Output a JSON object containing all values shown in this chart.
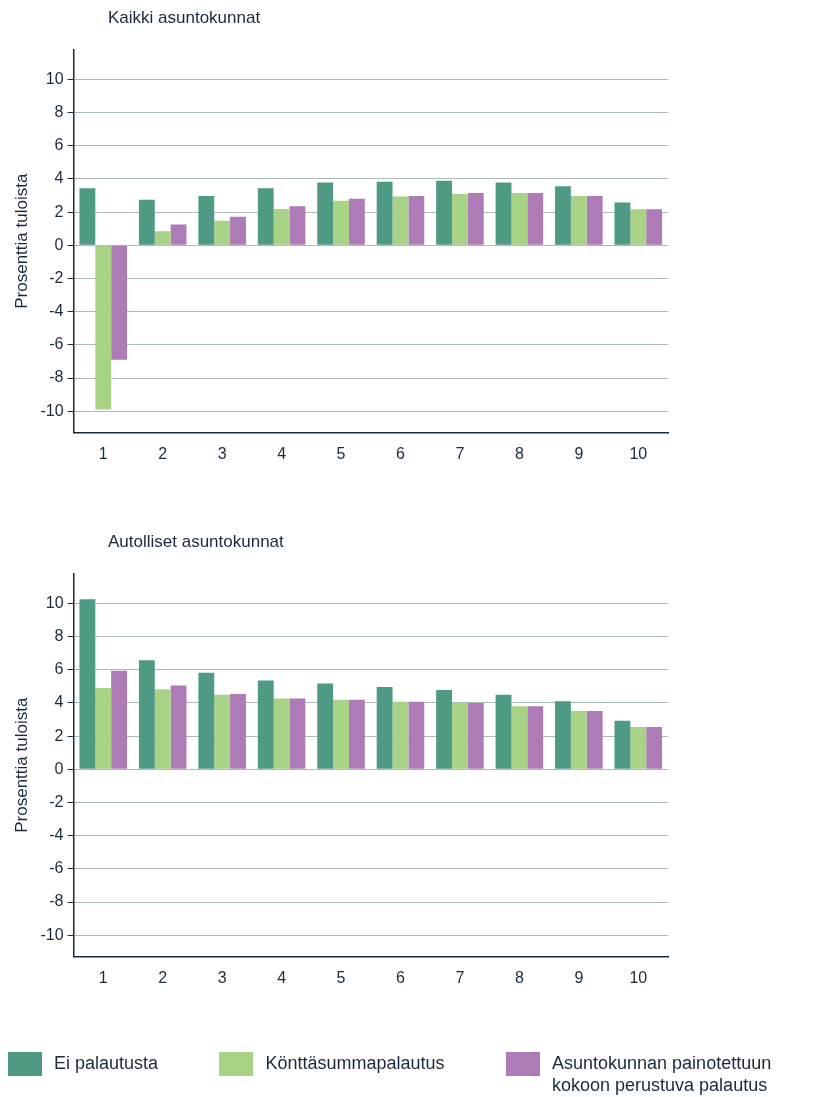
{
  "chart_data": [
    {
      "type": "bar",
      "title": "Kaikki asuntokunnat",
      "ylabel": "Prosenttia tuloista",
      "categories": [
        "1",
        "2",
        "3",
        "4",
        "5",
        "6",
        "7",
        "8",
        "9",
        "10"
      ],
      "ylim": [
        -11.3,
        11.8
      ],
      "yticks": [
        -10,
        -8,
        -6,
        -4,
        -2,
        0,
        2,
        4,
        6,
        8,
        10
      ],
      "grid": "y",
      "legend": false,
      "series": [
        {
          "color": "#4e9a85",
          "values": [
            3.44,
            2.75,
            2.98,
            3.44,
            3.79,
            3.83,
            3.9,
            3.79,
            3.56,
            2.58
          ]
        },
        {
          "color": "#a8d286",
          "values": [
            -9.9,
            0.85,
            1.48,
            2.19,
            2.69,
            2.94,
            3.1,
            3.15,
            2.98,
            2.17
          ]
        },
        {
          "color": "#ad7bb6",
          "values": [
            -6.9,
            1.25,
            1.73,
            2.35,
            2.81,
            2.98,
            3.15,
            3.15,
            2.98,
            2.17
          ]
        }
      ]
    },
    {
      "type": "bar",
      "title": "Autolliset asuntokunnat",
      "ylabel": "Prosenttia tuloista",
      "categories": [
        "1",
        "2",
        "3",
        "4",
        "5",
        "6",
        "7",
        "8",
        "9",
        "10"
      ],
      "ylim": [
        -11.3,
        11.8
      ],
      "yticks": [
        -10,
        -8,
        -6,
        -4,
        -2,
        0,
        2,
        4,
        6,
        8,
        10
      ],
      "grid": "y",
      "legend": "bottom",
      "series": [
        {
          "name": "Ei palautusta",
          "color": "#4e9a85",
          "values": [
            10.25,
            6.57,
            5.82,
            5.36,
            5.17,
            4.96,
            4.79,
            4.5,
            4.1,
            2.93
          ]
        },
        {
          "name": "Könttäsummapalautus",
          "color": "#a8d286",
          "values": [
            4.9,
            4.83,
            4.5,
            4.27,
            4.2,
            4.08,
            4.0,
            3.81,
            3.52,
            2.55
          ]
        },
        {
          "name": "Asuntokunnan painotettuun kokoon perustuva palautus",
          "color": "#ad7bb6",
          "values": [
            5.94,
            5.06,
            4.54,
            4.27,
            4.2,
            4.08,
            4.0,
            3.81,
            3.52,
            2.55
          ]
        }
      ]
    }
  ]
}
